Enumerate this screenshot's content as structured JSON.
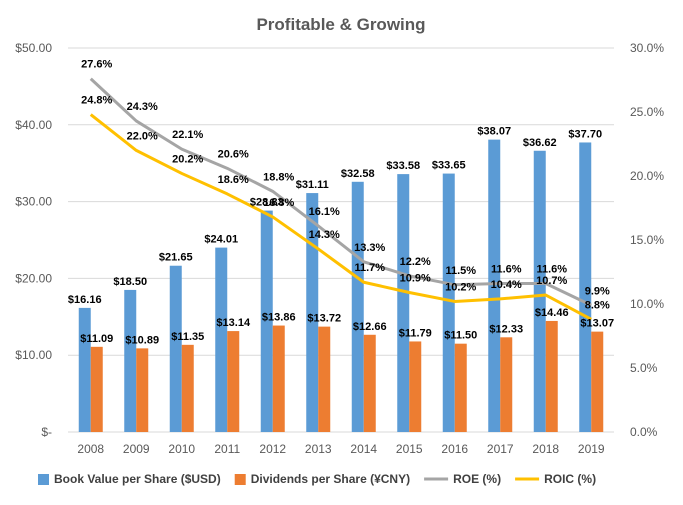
{
  "chart_data": {
    "type": "bar+line",
    "title": "Profitable & Growing",
    "categories": [
      "2008",
      "2009",
      "2010",
      "2011",
      "2012",
      "2013",
      "2014",
      "2015",
      "2016",
      "2017",
      "2018",
      "2019"
    ],
    "left_axis": {
      "min": 0,
      "max": 50,
      "step": 10,
      "tick_labels": [
        "$-",
        "$10.00",
        "$20.00",
        "$30.00",
        "$40.00",
        "$50.00"
      ]
    },
    "right_axis": {
      "min": 0,
      "max": 30,
      "step": 5,
      "tick_labels": [
        "0.0%",
        "5.0%",
        "10.0%",
        "15.0%",
        "20.0%",
        "25.0%",
        "30.0%"
      ]
    },
    "grid": true,
    "legend_position": "bottom",
    "series": [
      {
        "name": "Book Value per Share ($USD)",
        "kind": "bar",
        "axis": "left",
        "color": "#5b9bd5",
        "values": [
          16.16,
          18.5,
          21.65,
          24.01,
          28.83,
          31.11,
          32.58,
          33.58,
          33.65,
          38.07,
          36.62,
          37.7
        ],
        "labels": [
          "$16.16",
          "$18.50",
          "$21.65",
          "$24.01",
          "$28.83",
          "$31.11",
          "$32.58",
          "$33.58",
          "$33.65",
          "$38.07",
          "$36.62",
          "$37.70"
        ]
      },
      {
        "name": "Dividends per Share (¥CNY)",
        "kind": "bar",
        "axis": "left",
        "color": "#ed7d31",
        "values": [
          11.09,
          10.89,
          11.35,
          13.14,
          13.86,
          13.72,
          12.66,
          11.79,
          11.5,
          12.33,
          14.46,
          13.07
        ],
        "labels": [
          "$11.09",
          "$10.89",
          "$11.35",
          "$13.14",
          "$13.86",
          "$13.72",
          "$12.66",
          "$11.79",
          "$11.50",
          "$12.33",
          "$14.46",
          "$13.07"
        ]
      },
      {
        "name": "ROE (%)",
        "kind": "line",
        "axis": "right",
        "color": "#a5a5a5",
        "values": [
          27.6,
          24.3,
          22.1,
          20.6,
          18.8,
          16.1,
          13.3,
          12.2,
          11.5,
          11.6,
          11.6,
          9.9
        ],
        "labels": [
          "27.6%",
          "24.3%",
          "22.1%",
          "20.6%",
          "18.8%",
          "16.1%",
          "13.3%",
          "12.2%",
          "11.5%",
          "11.6%",
          "11.6%",
          "9.9%"
        ]
      },
      {
        "name": "ROIC (%)",
        "kind": "line",
        "axis": "right",
        "color": "#ffc000",
        "values": [
          24.8,
          22.0,
          20.2,
          18.6,
          16.8,
          14.3,
          11.7,
          10.9,
          10.2,
          10.4,
          10.7,
          8.8
        ],
        "labels": [
          "24.8%",
          "22.0%",
          "20.2%",
          "18.6%",
          "16.8%",
          "14.3%",
          "11.7%",
          "10.9%",
          "10.2%",
          "10.4%",
          "10.7%",
          "8.8%"
        ]
      }
    ]
  }
}
